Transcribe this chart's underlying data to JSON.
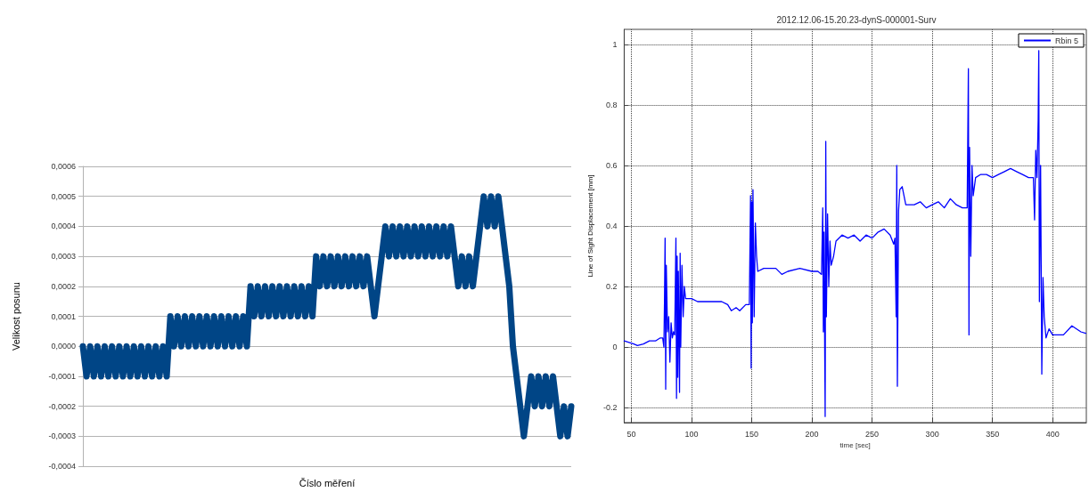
{
  "chart_data": [
    {
      "type": "line",
      "xlabel": "Číslo měření",
      "ylabel": "Velikost posunu",
      "categories": [
        null,
        null,
        null,
        null,
        null,
        null,
        null,
        null,
        null,
        null,
        null,
        null,
        null,
        null,
        null,
        null,
        null,
        null,
        null,
        null,
        null,
        null,
        null,
        null,
        null,
        null,
        null,
        null,
        null,
        null,
        null,
        null,
        null,
        null,
        null,
        null,
        null,
        null,
        null,
        null,
        null,
        null,
        null,
        null,
        null,
        null,
        null,
        null,
        null,
        null,
        null,
        null,
        null,
        null,
        null,
        null,
        null,
        null,
        null,
        null,
        null,
        null,
        null,
        null,
        null,
        null,
        null,
        null,
        null,
        null,
        null,
        null,
        null,
        null,
        null,
        null,
        null,
        null,
        null,
        null,
        null,
        null,
        null,
        null,
        null,
        null,
        null,
        null,
        null,
        null,
        null,
        null,
        null,
        null,
        null,
        null,
        null,
        null,
        null,
        null,
        null,
        null,
        null,
        null,
        null,
        null,
        null,
        null,
        null,
        null,
        null,
        null,
        null,
        null,
        null,
        null,
        null,
        null,
        null,
        null,
        null,
        null,
        null,
        null,
        null,
        null,
        null,
        null,
        null,
        null,
        null,
        null,
        null,
        null,
        null
      ],
      "series": [
        {
          "color": "#004586",
          "values": [
            0,
            -0.0001,
            0,
            -0.0001,
            0,
            -0.0001,
            0,
            -0.0001,
            0,
            -0.0001,
            0,
            -0.0001,
            0,
            -0.0001,
            0,
            -0.0001,
            0,
            -0.0001,
            0,
            -0.0001,
            0,
            -0.0001,
            0,
            -0.0001,
            0.0001,
            0,
            0.0001,
            0,
            0.0001,
            0,
            0.0001,
            0,
            0.0001,
            0,
            0.0001,
            0,
            0.0001,
            0,
            0.0001,
            0,
            0.0001,
            0,
            0.0001,
            0,
            0.0001,
            0,
            0.0002,
            0.0001,
            0.0002,
            0.0001,
            0.0002,
            0.0001,
            0.0002,
            0.0001,
            0.0002,
            0.0001,
            0.0002,
            0.0001,
            0.0002,
            0.0001,
            0.0002,
            0.0001,
            0.0002,
            0.0001,
            0.0003,
            0.0002,
            0.0003,
            0.0002,
            0.0003,
            0.0002,
            0.0003,
            0.0002,
            0.0003,
            0.0002,
            0.0003,
            0.0002,
            0.0003,
            0.0002,
            0.0003,
            0.0002,
            0.0001,
            0.0002,
            0.0003,
            0.0004,
            0.0003,
            0.0004,
            0.0003,
            0.0004,
            0.0003,
            0.0004,
            0.0003,
            0.0004,
            0.0003,
            0.0004,
            0.0003,
            0.0004,
            0.0003,
            0.0004,
            0.0003,
            0.0004,
            0.0003,
            0.0004,
            0.0003,
            0.0002,
            0.0003,
            0.0002,
            0.0003,
            0.0002,
            0.0003,
            0.0004,
            0.0005,
            0.0004,
            0.0005,
            0.0004,
            0.0005,
            0.0004,
            0.0003,
            0.0002,
            0,
            -0.0001,
            -0.0002,
            -0.0003,
            -0.0002,
            -0.0001,
            -0.0002,
            -0.0001,
            -0.0002,
            -0.0001,
            -0.0002,
            -0.0001,
            -0.0002,
            -0.0003,
            -0.0002,
            -0.0003,
            -0.0002
          ]
        }
      ],
      "ylim": [
        -0.0004,
        0.0006
      ],
      "yticks": [
        {
          "value": -0.0004,
          "label": "-0,0004"
        },
        {
          "value": -0.0003,
          "label": "-0,0003"
        },
        {
          "value": -0.0002,
          "label": "-0,0002"
        },
        {
          "value": -0.0001,
          "label": "-0,0001"
        },
        {
          "value": 0,
          "label": "0,0000"
        },
        {
          "value": 0.0001,
          "label": "0,0001"
        },
        {
          "value": 0.0002,
          "label": "0,0002"
        },
        {
          "value": 0.0003,
          "label": "0,0003"
        },
        {
          "value": 0.0004,
          "label": "0,0004"
        },
        {
          "value": 0.0005,
          "label": "0,0005"
        },
        {
          "value": 0.0006,
          "label": "0,0006"
        }
      ],
      "grid": "y",
      "marker": "none",
      "line_style": "solid"
    },
    {
      "type": "line",
      "title": "2012.12.06-15.20.23-dynS-000001-Surv",
      "xlabel": "time [sec]",
      "ylabel": "Line of Sight Displacement [mm]",
      "x": [
        44,
        48,
        52,
        55,
        60,
        65,
        70,
        74,
        76,
        77,
        77.5,
        78,
        78.5,
        79,
        80,
        81,
        82,
        83,
        84,
        85,
        86,
        87,
        87.5,
        88,
        88.5,
        89,
        90,
        90.5,
        91,
        92,
        93,
        94,
        95,
        100,
        105,
        110,
        115,
        120,
        125,
        130,
        133,
        137,
        140,
        145,
        148,
        149,
        149.5,
        150,
        150.5,
        151,
        152,
        153,
        154,
        155,
        160,
        170,
        175,
        180,
        190,
        200,
        205,
        208,
        209,
        209.5,
        210,
        211,
        211.5,
        212,
        213,
        214,
        215,
        216,
        218,
        220,
        225,
        230,
        235,
        240,
        245,
        250,
        255,
        260,
        265,
        268,
        269,
        270,
        270.5,
        271,
        272,
        273,
        275,
        278,
        285,
        290,
        295,
        300,
        305,
        310,
        315,
        320,
        325,
        329,
        330,
        330.5,
        331,
        332,
        333,
        334,
        336,
        340,
        345,
        350,
        355,
        360,
        365,
        370,
        375,
        380,
        384,
        385,
        386,
        387,
        388,
        388.5,
        389,
        390,
        391,
        392,
        393,
        394.5,
        397,
        400,
        405,
        409,
        416,
        423.5,
        427.5
      ],
      "series": [
        {
          "name": "Rbin 5",
          "color": "#0000ff",
          "values": [
            0.02,
            0.015,
            0.01,
            0.005,
            0.01,
            0.02,
            0.02,
            0.03,
            0.03,
            0.0,
            0.15,
            0.36,
            -0.14,
            0.27,
            0.05,
            0.1,
            -0.05,
            0.08,
            0.03,
            0.05,
            0.04,
            0.36,
            -0.17,
            0.3,
            -0.1,
            0.25,
            -0.15,
            0.31,
            0.0,
            0.27,
            0.1,
            0.2,
            0.16,
            0.16,
            0.15,
            0.15,
            0.15,
            0.15,
            0.15,
            0.14,
            0.12,
            0.13,
            0.12,
            0.14,
            0.14,
            0.5,
            -0.07,
            0.48,
            0.08,
            0.52,
            0.1,
            0.41,
            0.3,
            0.25,
            0.26,
            0.26,
            0.24,
            0.25,
            0.26,
            0.25,
            0.25,
            0.24,
            0.46,
            0.05,
            0.38,
            -0.23,
            0.68,
            0.1,
            0.44,
            0.2,
            0.35,
            0.27,
            0.3,
            0.35,
            0.37,
            0.36,
            0.37,
            0.35,
            0.37,
            0.36,
            0.38,
            0.39,
            0.37,
            0.34,
            0.36,
            0.1,
            0.6,
            -0.13,
            0.45,
            0.52,
            0.53,
            0.47,
            0.47,
            0.48,
            0.46,
            0.47,
            0.48,
            0.46,
            0.49,
            0.47,
            0.46,
            0.46,
            0.92,
            0.04,
            0.66,
            0.3,
            0.6,
            0.5,
            0.56,
            0.57,
            0.57,
            0.56,
            0.57,
            0.58,
            0.59,
            0.58,
            0.57,
            0.56,
            0.56,
            0.42,
            0.65,
            0.56,
            0.75,
            0.98,
            0.15,
            0.6,
            -0.09,
            0.23,
            0.1,
            0.03,
            0.06,
            0.04,
            0.04,
            0.04,
            0.07,
            0.05,
            0.045
          ]
        }
      ],
      "xlim": [
        44,
        428
      ],
      "xticks": [
        50,
        100,
        150,
        200,
        250,
        300,
        350,
        400
      ],
      "ylim": [
        -0.25,
        1.05
      ],
      "yticks": [
        -0.2,
        0,
        0.2,
        0.4,
        0.6,
        0.8,
        1
      ],
      "grid": true,
      "legend": "top right",
      "marker": "none",
      "line_style": "solid"
    }
  ]
}
